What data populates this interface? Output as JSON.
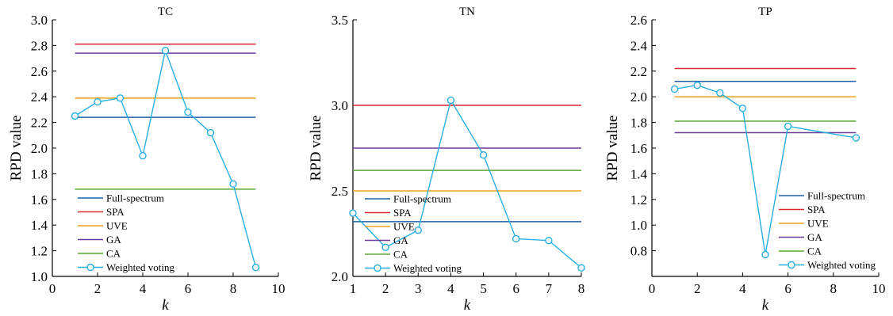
{
  "chart_data": [
    {
      "type": "line",
      "title": "TC",
      "xlabel": "k",
      "ylabel": "RPD value",
      "xlim": [
        0,
        10
      ],
      "ylim": [
        1.0,
        3.0
      ],
      "xticks": [
        "0",
        "2",
        "4",
        "6",
        "8",
        "10"
      ],
      "yticks": [
        "1.0",
        "1.2",
        "1.4",
        "1.6",
        "1.8",
        "2.0",
        "2.2",
        "2.4",
        "2.6",
        "2.8",
        "3.0"
      ],
      "xtick_values": [
        0,
        2,
        4,
        6,
        8,
        10
      ],
      "ytick_values": [
        1.0,
        1.2,
        1.4,
        1.6,
        1.8,
        2.0,
        2.2,
        2.4,
        2.6,
        2.8,
        3.0
      ],
      "hline_range": [
        1,
        9
      ],
      "series": [
        {
          "name": "Full-spectrum",
          "kind": "hline",
          "value": 2.24,
          "color": "#1f5fa8"
        },
        {
          "name": "SPA",
          "kind": "hline",
          "value": 2.81,
          "color": "#d9282f"
        },
        {
          "name": "UVE",
          "kind": "hline",
          "value": 2.39,
          "color": "#f0a019"
        },
        {
          "name": "GA",
          "kind": "hline",
          "value": 2.74,
          "color": "#6a3d9a"
        },
        {
          "name": "CA",
          "kind": "hline",
          "value": 1.68,
          "color": "#5aa832"
        },
        {
          "name": "Weighted voting",
          "kind": "line-marker",
          "color": "#29aee0",
          "x": [
            1,
            2,
            3,
            4,
            5,
            6,
            7,
            8,
            9
          ],
          "y": [
            2.25,
            2.36,
            2.39,
            1.94,
            2.76,
            2.28,
            2.12,
            1.72,
            1.07
          ]
        }
      ],
      "legend": "bottom-left"
    },
    {
      "type": "line",
      "title": "TN",
      "xlabel": "k",
      "ylabel": "RPD value",
      "xlim": [
        1,
        8
      ],
      "ylim": [
        2.0,
        3.5
      ],
      "xticks": [
        "1",
        "2",
        "3",
        "4",
        "5",
        "6",
        "7",
        "8"
      ],
      "yticks": [
        "2.0",
        "2.5",
        "3.0",
        "3.5"
      ],
      "xtick_values": [
        1,
        2,
        3,
        4,
        5,
        6,
        7,
        8
      ],
      "ytick_values": [
        2.0,
        2.5,
        3.0,
        3.5
      ],
      "hline_range": [
        1,
        8
      ],
      "series": [
        {
          "name": "Full-spectrum",
          "kind": "hline",
          "value": 2.32,
          "color": "#1f5fa8"
        },
        {
          "name": "SPA",
          "kind": "hline",
          "value": 3.0,
          "color": "#d9282f"
        },
        {
          "name": "UVE",
          "kind": "hline",
          "value": 2.5,
          "color": "#f0a019"
        },
        {
          "name": "GA",
          "kind": "hline",
          "value": 2.75,
          "color": "#6a3d9a"
        },
        {
          "name": "CA",
          "kind": "hline",
          "value": 2.62,
          "color": "#5aa832"
        },
        {
          "name": "Weighted voting",
          "kind": "line-marker",
          "color": "#29aee0",
          "x": [
            1,
            2,
            3,
            4,
            5,
            6,
            7,
            8
          ],
          "y": [
            2.37,
            2.17,
            2.27,
            3.03,
            2.71,
            2.22,
            2.21,
            2.05
          ]
        }
      ],
      "legend": "bottom-left"
    },
    {
      "type": "line",
      "title": "TP",
      "xlabel": "k",
      "ylabel": "RPD value",
      "xlim": [
        0,
        10
      ],
      "ylim": [
        0.6,
        2.6
      ],
      "xticks": [
        "0",
        "2",
        "4",
        "6",
        "8",
        "10"
      ],
      "yticks": [
        "0.8",
        "1.0",
        "1.2",
        "1.4",
        "1.6",
        "1.8",
        "2.0",
        "2.2",
        "2.4",
        "2.6"
      ],
      "xtick_values": [
        0,
        2,
        4,
        6,
        8,
        10
      ],
      "ytick_values": [
        0.8,
        1.0,
        1.2,
        1.4,
        1.6,
        1.8,
        2.0,
        2.2,
        2.4,
        2.6
      ],
      "hline_range": [
        1,
        9
      ],
      "series": [
        {
          "name": "Full-spectrum",
          "kind": "hline",
          "value": 2.12,
          "color": "#1f5fa8"
        },
        {
          "name": "SPA",
          "kind": "hline",
          "value": 2.22,
          "color": "#d9282f"
        },
        {
          "name": "UVE",
          "kind": "hline",
          "value": 2.0,
          "color": "#f0a019"
        },
        {
          "name": "GA",
          "kind": "hline",
          "value": 1.72,
          "color": "#6a3d9a"
        },
        {
          "name": "CA",
          "kind": "hline",
          "value": 1.81,
          "color": "#5aa832"
        },
        {
          "name": "Weighted voting",
          "kind": "line-marker",
          "color": "#29aee0",
          "x": [
            1,
            2,
            3,
            4,
            5,
            6,
            9
          ],
          "y": [
            2.06,
            2.09,
            2.03,
            1.91,
            0.77,
            1.77,
            1.68
          ]
        }
      ],
      "legend": "bottom-right"
    }
  ]
}
